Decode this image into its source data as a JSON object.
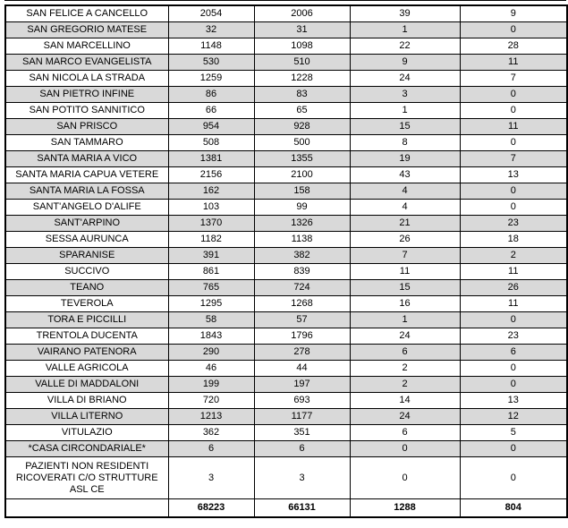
{
  "table": {
    "columns": 5,
    "shaded_row_color": "#d9d9d9",
    "border_color": "#000000",
    "rows": [
      {
        "name": "SAN FELICE A CANCELLO",
        "values": [
          "2054",
          "2006",
          "39",
          "9"
        ],
        "shaded": false
      },
      {
        "name": "SAN GREGORIO MATESE",
        "values": [
          "32",
          "31",
          "1",
          "0"
        ],
        "shaded": true
      },
      {
        "name": "SAN MARCELLINO",
        "values": [
          "1148",
          "1098",
          "22",
          "28"
        ],
        "shaded": false
      },
      {
        "name": "SAN MARCO EVANGELISTA",
        "values": [
          "530",
          "510",
          "9",
          "11"
        ],
        "shaded": true
      },
      {
        "name": "SAN NICOLA LA STRADA",
        "values": [
          "1259",
          "1228",
          "24",
          "7"
        ],
        "shaded": false
      },
      {
        "name": "SAN PIETRO INFINE",
        "values": [
          "86",
          "83",
          "3",
          "0"
        ],
        "shaded": true
      },
      {
        "name": "SAN POTITO SANNITICO",
        "values": [
          "66",
          "65",
          "1",
          "0"
        ],
        "shaded": false
      },
      {
        "name": "SAN PRISCO",
        "values": [
          "954",
          "928",
          "15",
          "11"
        ],
        "shaded": true
      },
      {
        "name": "SAN TAMMARO",
        "values": [
          "508",
          "500",
          "8",
          "0"
        ],
        "shaded": false
      },
      {
        "name": "SANTA MARIA A VICO",
        "values": [
          "1381",
          "1355",
          "19",
          "7"
        ],
        "shaded": true
      },
      {
        "name": "SANTA MARIA CAPUA VETERE",
        "values": [
          "2156",
          "2100",
          "43",
          "13"
        ],
        "shaded": false
      },
      {
        "name": "SANTA MARIA LA FOSSA",
        "values": [
          "162",
          "158",
          "4",
          "0"
        ],
        "shaded": true
      },
      {
        "name": "SANT'ANGELO D'ALIFE",
        "values": [
          "103",
          "99",
          "4",
          "0"
        ],
        "shaded": false
      },
      {
        "name": "SANT'ARPINO",
        "values": [
          "1370",
          "1326",
          "21",
          "23"
        ],
        "shaded": true
      },
      {
        "name": "SESSA AURUNCA",
        "values": [
          "1182",
          "1138",
          "26",
          "18"
        ],
        "shaded": false
      },
      {
        "name": "SPARANISE",
        "values": [
          "391",
          "382",
          "7",
          "2"
        ],
        "shaded": true
      },
      {
        "name": "SUCCIVO",
        "values": [
          "861",
          "839",
          "11",
          "11"
        ],
        "shaded": false
      },
      {
        "name": "TEANO",
        "values": [
          "765",
          "724",
          "15",
          "26"
        ],
        "shaded": true
      },
      {
        "name": "TEVEROLA",
        "values": [
          "1295",
          "1268",
          "16",
          "11"
        ],
        "shaded": false
      },
      {
        "name": "TORA E PICCILLI",
        "values": [
          "58",
          "57",
          "1",
          "0"
        ],
        "shaded": true
      },
      {
        "name": "TRENTOLA DUCENTA",
        "values": [
          "1843",
          "1796",
          "24",
          "23"
        ],
        "shaded": false
      },
      {
        "name": "VAIRANO PATENORA",
        "values": [
          "290",
          "278",
          "6",
          "6"
        ],
        "shaded": true
      },
      {
        "name": "VALLE AGRICOLA",
        "values": [
          "46",
          "44",
          "2",
          "0"
        ],
        "shaded": false
      },
      {
        "name": "VALLE DI MADDALONI",
        "values": [
          "199",
          "197",
          "2",
          "0"
        ],
        "shaded": true
      },
      {
        "name": "VILLA DI BRIANO",
        "values": [
          "720",
          "693",
          "14",
          "13"
        ],
        "shaded": false
      },
      {
        "name": "VILLA LITERNO",
        "values": [
          "1213",
          "1177",
          "24",
          "12"
        ],
        "shaded": true
      },
      {
        "name": "VITULAZIO",
        "values": [
          "362",
          "351",
          "6",
          "5"
        ],
        "shaded": false
      },
      {
        "name": "*CASA CIRCONDARIALE*",
        "values": [
          "6",
          "6",
          "0",
          "0"
        ],
        "shaded": true
      },
      {
        "name": "PAZIENTI NON RESIDENTI RICOVERATI C/O STRUTTURE ASL CE",
        "values": [
          "3",
          "3",
          "0",
          "0"
        ],
        "shaded": false,
        "tall": true
      }
    ],
    "total_row": {
      "name": "",
      "values": [
        "68223",
        "66131",
        "1288",
        "804"
      ]
    }
  }
}
